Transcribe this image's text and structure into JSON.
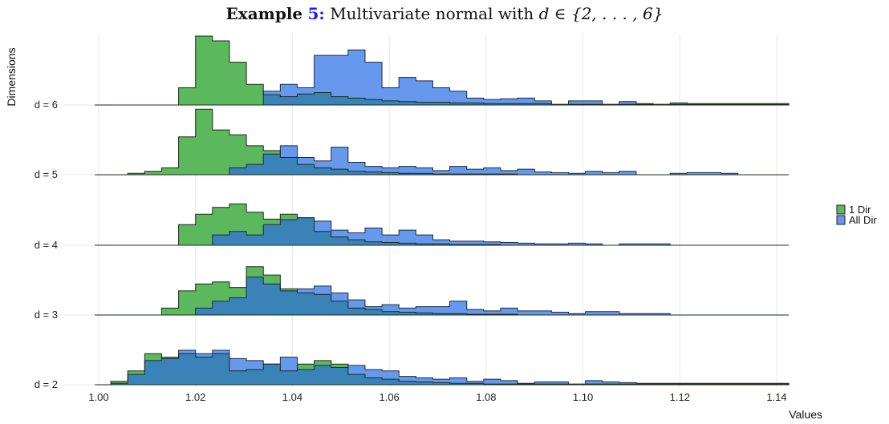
{
  "title": {
    "bold": "Example",
    "ref": "5:",
    "text": "Multivariate normal with",
    "math": "d ∈ {2, . . . , 6}"
  },
  "chart_data": {
    "type": "ridgeline-histogram",
    "xlabel": "Values",
    "ylabel": "Dimensions",
    "xlim": [
      1.0,
      1.14
    ],
    "xticks": [
      "1.00",
      "1.02",
      "1.04",
      "1.06",
      "1.08",
      "1.10",
      "1.12",
      "1.14"
    ],
    "bin_start": 1.0025,
    "bin_width": 0.0035,
    "legend": {
      "position": "right",
      "entries": [
        "1 Dir",
        "All Dir"
      ]
    },
    "colors": {
      "1 Dir": "#5cb85c",
      "All Dir": "#6699ee",
      "overlap": "#3a83b8"
    },
    "rows": [
      {
        "label": "d = 6",
        "series": [
          {
            "name": "1 Dir",
            "values": [
              0,
              0,
              0,
              0,
              0.25,
              1.0,
              0.93,
              0.62,
              0.3,
              0.15,
              0.12,
              0.16,
              0.18,
              0.12,
              0.1,
              0.08,
              0.06,
              0.05,
              0.04,
              0.04,
              0.03,
              0.03,
              0.02,
              0.02,
              0.02,
              0.02,
              0.01,
              0.01,
              0.01,
              0.01,
              0.01,
              0.01,
              0.01,
              0.01,
              0.01,
              0.01,
              0.01,
              0.01,
              0.01,
              0.01
            ]
          },
          {
            "name": "All Dir",
            "values": [
              0,
              0,
              0,
              0,
              0,
              0,
              0,
              0,
              0,
              0.2,
              0.3,
              0.25,
              0.72,
              0.72,
              0.8,
              0.62,
              0.25,
              0.4,
              0.35,
              0.25,
              0.2,
              0.1,
              0.08,
              0.09,
              0.1,
              0.06,
              0,
              0.06,
              0.06,
              0,
              0.05,
              0.02,
              0,
              0.03,
              0.02,
              0.02,
              0.02,
              0.02,
              0.02,
              0.02
            ]
          }
        ]
      },
      {
        "label": "d = 5",
        "series": [
          {
            "name": "1 Dir",
            "values": [
              0,
              0.02,
              0.05,
              0.1,
              0.55,
              0.95,
              0.65,
              0.58,
              0.42,
              0.35,
              0.25,
              0.15,
              0.1,
              0.08,
              0.05,
              0.04,
              0.03,
              0.02,
              0.02,
              0.01,
              0.01,
              0.01,
              0.01,
              0.01,
              0,
              0,
              0,
              0,
              0,
              0,
              0,
              0,
              0,
              0,
              0,
              0,
              0,
              0,
              0,
              0
            ]
          },
          {
            "name": "All Dir",
            "values": [
              0,
              0,
              0,
              0,
              0,
              0,
              0,
              0.1,
              0.15,
              0.3,
              0.42,
              0.25,
              0.2,
              0.4,
              0.18,
              0.12,
              0.1,
              0.12,
              0.1,
              0.06,
              0.12,
              0.08,
              0.1,
              0.06,
              0.08,
              0.04,
              0.03,
              0.02,
              0.05,
              0.03,
              0.05,
              0,
              0,
              0.02,
              0.03,
              0.03,
              0.02,
              0,
              0,
              0
            ]
          }
        ]
      },
      {
        "label": "d = 4",
        "series": [
          {
            "name": "1 Dir",
            "values": [
              0,
              0,
              0,
              0,
              0.3,
              0.45,
              0.55,
              0.6,
              0.48,
              0.38,
              0.45,
              0.4,
              0.2,
              0.12,
              0.08,
              0.05,
              0.04,
              0.03,
              0.02,
              0.02,
              0.01,
              0.01,
              0.01,
              0,
              0,
              0,
              0,
              0,
              0,
              0,
              0,
              0,
              0,
              0,
              0,
              0,
              0,
              0,
              0,
              0
            ]
          },
          {
            "name": "All Dir",
            "values": [
              0,
              0,
              0,
              0,
              0,
              0,
              0.15,
              0.2,
              0.15,
              0.3,
              0.37,
              0.4,
              0.35,
              0.22,
              0.18,
              0.25,
              0.15,
              0.22,
              0.15,
              0.08,
              0.06,
              0.06,
              0.05,
              0.04,
              0.03,
              0.02,
              0.02,
              0.03,
              0.02,
              0,
              0.02,
              0.02,
              0.02,
              0,
              0,
              0,
              0,
              0,
              0,
              0
            ]
          }
        ]
      },
      {
        "label": "d = 3",
        "series": [
          {
            "name": "1 Dir",
            "values": [
              0,
              0,
              0,
              0.1,
              0.35,
              0.45,
              0.48,
              0.4,
              0.7,
              0.58,
              0.38,
              0.32,
              0.3,
              0.2,
              0.1,
              0.08,
              0.05,
              0.04,
              0.03,
              0.02,
              0.02,
              0.01,
              0.01,
              0.01,
              0,
              0,
              0,
              0,
              0,
              0,
              0,
              0,
              0,
              0,
              0,
              0,
              0,
              0,
              0,
              0
            ]
          },
          {
            "name": "All Dir",
            "values": [
              0,
              0,
              0,
              0,
              0,
              0.1,
              0.2,
              0.25,
              0.55,
              0.45,
              0.35,
              0.38,
              0.42,
              0.32,
              0.22,
              0.12,
              0.15,
              0.1,
              0.12,
              0.12,
              0.2,
              0.08,
              0.06,
              0.1,
              0.06,
              0.06,
              0.04,
              0.02,
              0.05,
              0.05,
              0.02,
              0.02,
              0.02,
              0,
              0,
              0,
              0,
              0,
              0,
              0
            ]
          }
        ]
      },
      {
        "label": "d = 2",
        "series": [
          {
            "name": "1 Dir",
            "values": [
              0.05,
              0.2,
              0.45,
              0.38,
              0.45,
              0.4,
              0.45,
              0.2,
              0.22,
              0.3,
              0.2,
              0.3,
              0.35,
              0.3,
              0.15,
              0.1,
              0.08,
              0.05,
              0.04,
              0.03,
              0.02,
              0.02,
              0.01,
              0.01,
              0.01,
              0.01,
              0.01,
              0.01,
              0.01,
              0.01,
              0.01,
              0.01,
              0.01,
              0.01,
              0.01,
              0.01,
              0.01,
              0.01,
              0.01,
              0.01
            ]
          },
          {
            "name": "All Dir",
            "values": [
              0.02,
              0.15,
              0.35,
              0.4,
              0.5,
              0.45,
              0.5,
              0.38,
              0.35,
              0.3,
              0.4,
              0.22,
              0.28,
              0.25,
              0.28,
              0.22,
              0.2,
              0.12,
              0.1,
              0.08,
              0.1,
              0.05,
              0.08,
              0.06,
              0.02,
              0.04,
              0.04,
              0,
              0.06,
              0.04,
              0.03,
              0.02,
              0.02,
              0.02,
              0.02,
              0.02,
              0.02,
              0.02,
              0.02,
              0.02
            ]
          }
        ]
      }
    ]
  }
}
